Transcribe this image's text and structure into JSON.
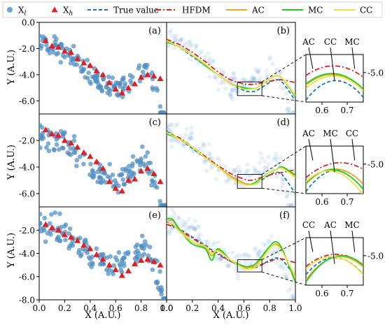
{
  "legend": {
    "items": [
      {
        "label": "X",
        "sub": "l",
        "kind": "dot",
        "color": "#4f8fc2"
      },
      {
        "label": "X",
        "sub": "h",
        "kind": "tri",
        "color": "#e02020"
      },
      {
        "label": "True value",
        "kind": "dash",
        "color": "#1f77b4"
      },
      {
        "label": "HFDM",
        "kind": "dashdot",
        "color": "#d62728"
      },
      {
        "label": "AC",
        "kind": "line",
        "color": "#f5a623"
      },
      {
        "label": "MC",
        "kind": "line",
        "color": "#22cc22"
      },
      {
        "label": "CC",
        "kind": "line",
        "color": "#f0e442"
      }
    ]
  },
  "colors": {
    "low_fidelity": "#4f8fc2",
    "high_fidelity": "#e02020",
    "true_value": "#1f77b4",
    "hfdm": "#d62728",
    "ac": "#f5a623",
    "mc": "#22cc22",
    "cc": "#f0e442"
  },
  "chart_data": [
    {
      "type": "scatter",
      "panel": "(a)",
      "ylabel": "Y (A.U.)",
      "xlabel": "",
      "xlim": [
        0.0,
        1.0
      ],
      "ylim": [
        -7.0,
        0.0
      ],
      "yticks": [
        "0.0",
        "-2.0",
        "-4.0",
        "-6.0"
      ],
      "xticks": [],
      "high_fidelity": {
        "x": [
          0.05,
          0.1,
          0.15,
          0.2,
          0.25,
          0.3,
          0.35,
          0.4,
          0.45,
          0.5,
          0.55,
          0.6,
          0.65,
          0.7,
          0.75,
          0.8,
          0.85,
          0.9,
          0.95
        ],
        "y": [
          -1.4,
          -1.8,
          -1.9,
          -2.2,
          -2.3,
          -2.8,
          -3.1,
          -3.3,
          -3.7,
          -4.0,
          -4.6,
          -5.1,
          -5.4,
          -5.0,
          -4.7,
          -4.2,
          -4.0,
          -4.1,
          -4.3
        ]
      }
    },
    {
      "type": "line",
      "panel": "(b)",
      "xlim": [
        0.0,
        1.0
      ],
      "ylim": [
        -7.0,
        0.0
      ],
      "x": [
        0.0,
        0.1,
        0.2,
        0.3,
        0.4,
        0.5,
        0.6,
        0.65,
        0.7,
        0.8,
        0.85,
        0.9,
        1.0
      ],
      "series": [
        {
          "name": "True value",
          "values": [
            -1.3,
            -1.9,
            -2.6,
            -3.3,
            -4.0,
            -4.7,
            -5.2,
            -5.3,
            -5.2,
            -4.6,
            -4.4,
            -4.6,
            -6.0
          ]
        },
        {
          "name": "HFDM",
          "values": [
            -1.3,
            -1.7,
            -2.3,
            -3.0,
            -3.8,
            -4.4,
            -4.7,
            -4.75,
            -4.7,
            -4.5,
            -4.4,
            -4.4,
            -4.6
          ]
        },
        {
          "name": "AC",
          "values": [
            -1.4,
            -1.9,
            -2.5,
            -3.3,
            -4.0,
            -4.7,
            -5.0,
            -5.05,
            -5.0,
            -4.3,
            -4.1,
            -4.3,
            -5.6
          ]
        },
        {
          "name": "MC",
          "values": [
            -1.5,
            -1.9,
            -2.5,
            -3.3,
            -4.0,
            -4.7,
            -5.0,
            -5.05,
            -5.0,
            -4.3,
            -4.1,
            -4.3,
            -5.7
          ]
        },
        {
          "name": "CC",
          "values": [
            -1.4,
            -1.9,
            -2.5,
            -3.2,
            -4.0,
            -4.7,
            -5.1,
            -5.1,
            -5.0,
            -4.3,
            -4.1,
            -4.3,
            -5.6
          ]
        }
      ]
    },
    {
      "type": "scatter",
      "panel": "(c)",
      "ylabel": "Y (A.U.)",
      "xlim": [
        0.0,
        1.0
      ],
      "ylim": [
        -7.0,
        0.0
      ],
      "yticks": [
        "-2.0",
        "-4.0",
        "-6.0"
      ],
      "high_fidelity": {
        "x": [
          0.05,
          0.1,
          0.15,
          0.2,
          0.25,
          0.3,
          0.35,
          0.4,
          0.45,
          0.5,
          0.55,
          0.6,
          0.65,
          0.7,
          0.75,
          0.8,
          0.85,
          0.9,
          0.95
        ],
        "y": [
          -1.2,
          -1.5,
          -1.6,
          -2.0,
          -2.2,
          -2.5,
          -2.9,
          -3.2,
          -3.6,
          -4.1,
          -5.1,
          -5.6,
          -5.8,
          -5.0,
          -4.9,
          -4.3,
          -4.1,
          -4.5,
          -5.1
        ]
      }
    },
    {
      "type": "line",
      "panel": "(d)",
      "xlim": [
        0.0,
        1.0
      ],
      "ylim": [
        -7.0,
        0.0
      ],
      "x": [
        0.0,
        0.1,
        0.2,
        0.3,
        0.4,
        0.5,
        0.6,
        0.65,
        0.7,
        0.8,
        0.85,
        0.9,
        1.0
      ],
      "series": [
        {
          "name": "True value",
          "values": [
            -1.3,
            -1.9,
            -2.6,
            -3.3,
            -4.0,
            -4.7,
            -5.2,
            -5.3,
            -5.2,
            -4.6,
            -4.4,
            -4.6,
            -6.0
          ]
        },
        {
          "name": "HFDM",
          "values": [
            -1.5,
            -1.8,
            -2.5,
            -3.2,
            -3.9,
            -4.5,
            -4.9,
            -5.0,
            -4.9,
            -4.6,
            -4.5,
            -4.4,
            -4.2
          ]
        },
        {
          "name": "AC",
          "values": [
            -1.4,
            -1.9,
            -2.5,
            -3.3,
            -4.0,
            -4.7,
            -5.2,
            -5.3,
            -5.1,
            -4.4,
            -4.2,
            -4.1,
            -4.7
          ]
        },
        {
          "name": "MC",
          "values": [
            -1.5,
            -1.9,
            -2.5,
            -3.3,
            -4.0,
            -4.8,
            -5.3,
            -5.3,
            -5.1,
            -4.4,
            -4.2,
            -4.0,
            -4.6
          ]
        },
        {
          "name": "CC",
          "values": [
            -1.4,
            -1.9,
            -2.5,
            -3.3,
            -4.0,
            -4.8,
            -5.3,
            -5.35,
            -5.2,
            -4.4,
            -4.2,
            -4.1,
            -4.8
          ]
        }
      ]
    },
    {
      "type": "scatter",
      "panel": "(e)",
      "ylabel": "Y (A.U.)",
      "xlabel": "X (A.U.)",
      "xlim": [
        0.0,
        1.0
      ],
      "ylim": [
        -8.0,
        0.0
      ],
      "yticks": [
        "-2.0",
        "-4.0",
        "-6.0",
        "-8.0"
      ],
      "xticks": [
        "0.0",
        "0.2",
        "0.4",
        "0.6",
        "0.8",
        "1.0"
      ],
      "high_fidelity": {
        "x": [
          0.05,
          0.1,
          0.15,
          0.2,
          0.25,
          0.3,
          0.35,
          0.4,
          0.45,
          0.5,
          0.55,
          0.6,
          0.65,
          0.7,
          0.75,
          0.8,
          0.85,
          0.9,
          0.95
        ],
        "y": [
          -1.5,
          -1.8,
          -2.0,
          -2.4,
          -2.6,
          -2.9,
          -3.3,
          -3.6,
          -4.1,
          -4.5,
          -5.0,
          -5.4,
          -5.9,
          -5.5,
          -4.9,
          -4.6,
          -4.5,
          -4.7,
          -5.0
        ]
      }
    },
    {
      "type": "line",
      "panel": "(f)",
      "xlabel": "X (A.U.)",
      "xlim": [
        0.0,
        1.0
      ],
      "ylim": [
        -8.0,
        0.0
      ],
      "xticks": [
        "0.0",
        "0.2",
        "0.4",
        "0.6",
        "0.8",
        "1.0"
      ],
      "x": [
        0.0,
        0.05,
        0.1,
        0.2,
        0.3,
        0.35,
        0.4,
        0.5,
        0.6,
        0.65,
        0.7,
        0.8,
        0.85,
        0.9,
        1.0
      ],
      "series": [
        {
          "name": "True value",
          "values": [
            -1.3,
            -1.6,
            -1.9,
            -2.6,
            -3.3,
            -3.7,
            -4.0,
            -4.7,
            -5.2,
            -5.3,
            -5.2,
            -4.6,
            -4.4,
            -4.6,
            -6.0
          ]
        },
        {
          "name": "HFDM",
          "values": [
            -1.5,
            -1.7,
            -2.0,
            -2.7,
            -3.4,
            -3.8,
            -4.1,
            -4.7,
            -5.1,
            -5.2,
            -5.1,
            -4.7,
            -4.5,
            -4.5,
            -4.8
          ]
        },
        {
          "name": "AC",
          "values": [
            -1.2,
            -1.2,
            -1.9,
            -3.0,
            -3.5,
            -4.2,
            -3.7,
            -4.6,
            -5.2,
            -5.2,
            -5.0,
            -3.6,
            -3.2,
            -3.8,
            -6.2
          ]
        },
        {
          "name": "MC",
          "values": [
            -1.0,
            -1.1,
            -2.0,
            -3.2,
            -3.6,
            -4.6,
            -3.6,
            -4.6,
            -5.1,
            -5.1,
            -4.8,
            -3.4,
            -3.0,
            -3.7,
            -6.5
          ]
        },
        {
          "name": "CC",
          "values": [
            -1.4,
            -1.5,
            -2.1,
            -3.0,
            -3.4,
            -4.0,
            -3.8,
            -4.6,
            -5.3,
            -5.3,
            -5.1,
            -3.6,
            -3.3,
            -3.9,
            -6.0
          ]
        }
      ]
    },
    {
      "type": "line",
      "panel": "inset-b",
      "xticks": [
        "0.6",
        "0.7"
      ],
      "yticks": [
        "-5.0"
      ],
      "labels": [
        "AC",
        "CC",
        "MC"
      ]
    },
    {
      "type": "line",
      "panel": "inset-d",
      "xticks": [
        "0.6",
        "0.7"
      ],
      "yticks": [
        "-5.0"
      ],
      "labels": [
        "AC",
        "MC",
        "CC"
      ]
    },
    {
      "type": "line",
      "panel": "inset-f",
      "xticks": [
        "0.6",
        "0.7"
      ],
      "yticks": [
        "-5.0"
      ],
      "labels": [
        "CC",
        "AC",
        "MC"
      ]
    }
  ],
  "axis_labels": {
    "y": "Y (A.U.)",
    "x": "X (A.U.)"
  }
}
